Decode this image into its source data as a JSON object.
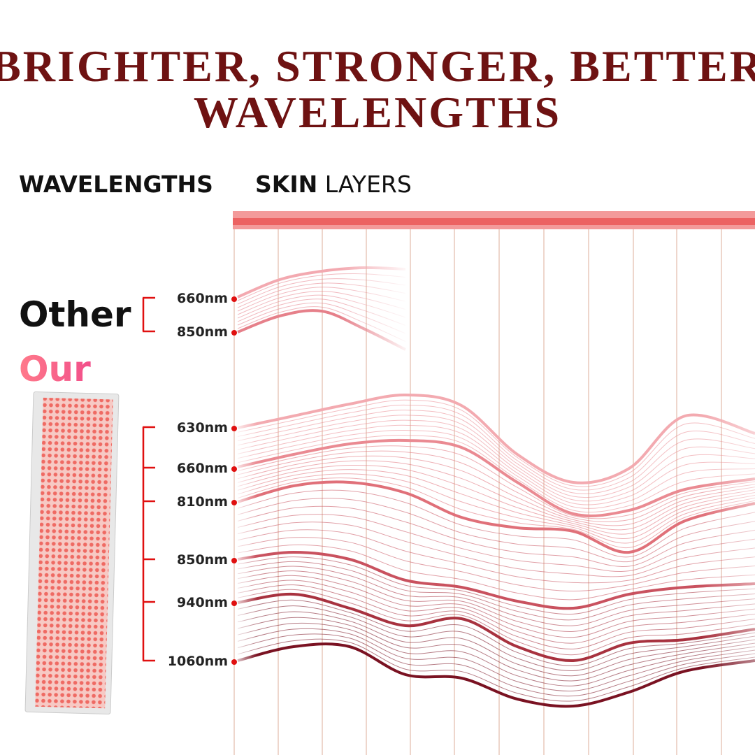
{
  "header": {
    "title_line1": "BRIGHTER, STRONGER, BETTER",
    "title_line2": "WAVELENGTHS"
  },
  "columns": {
    "wavelengths": "WAVELENGTHS",
    "skin": "SKIN",
    "layers": "LAYERS"
  },
  "other": {
    "label": "Other",
    "wavelengths": [
      "660nm",
      "850nm"
    ]
  },
  "our": {
    "label": "Our",
    "wavelengths": [
      "630nm",
      "660nm",
      "810nm",
      "850nm",
      "940nm",
      "1060nm"
    ]
  }
}
